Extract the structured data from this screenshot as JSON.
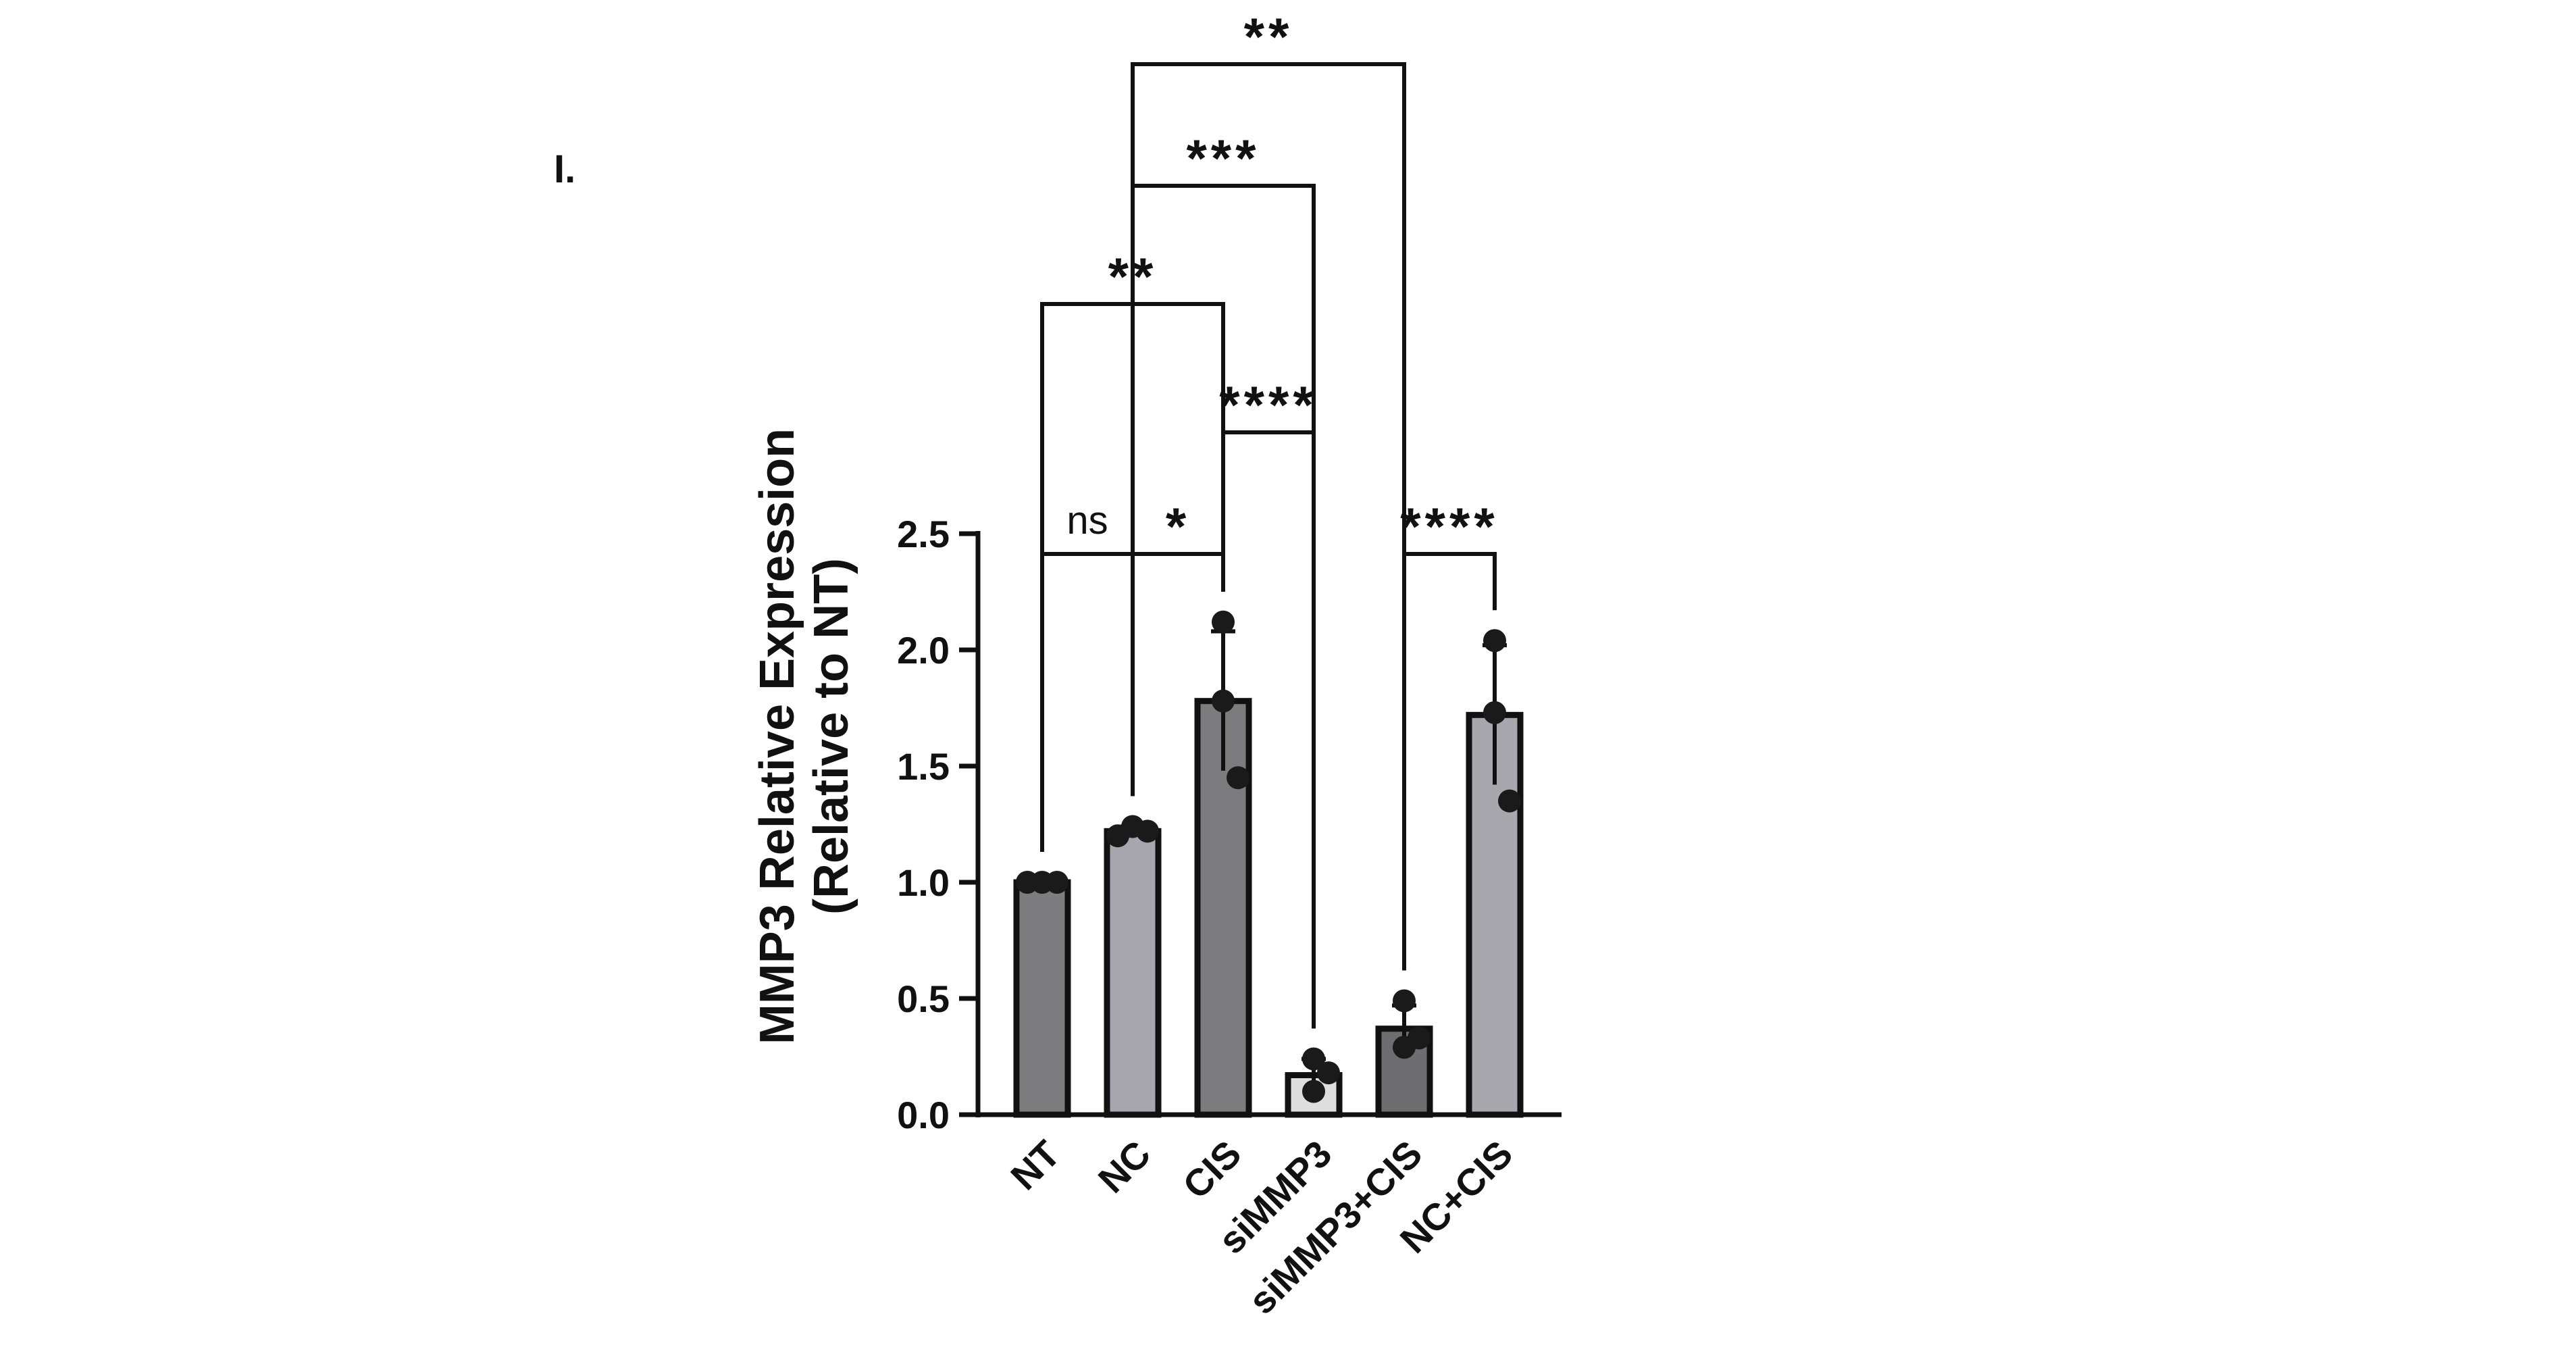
{
  "panel_label": "I.",
  "chart_data": {
    "type": "bar",
    "title": "",
    "xlabel": "",
    "ylabel_line1": "MMP3 Relative Expression",
    "ylabel_line2": "(Relative to NT)",
    "ylim": [
      0,
      2.5
    ],
    "yticks": [
      "0.0",
      "0.5",
      "1.0",
      "1.5",
      "2.0",
      "2.5"
    ],
    "grid": false,
    "legend": "none",
    "categories": [
      "NT",
      "NC",
      "CIS",
      "siMMP3",
      "siMMP3+CIS",
      "NC+CIS"
    ],
    "values": [
      1.0,
      1.22,
      1.78,
      0.17,
      0.37,
      1.72
    ],
    "error": [
      0.0,
      0.02,
      0.3,
      0.07,
      0.1,
      0.3
    ],
    "points": [
      [
        1.0,
        1.0,
        1.0
      ],
      [
        1.2,
        1.24,
        1.22
      ],
      [
        2.12,
        1.78,
        1.45
      ],
      [
        0.24,
        0.1,
        0.18
      ],
      [
        0.49,
        0.29,
        0.33
      ],
      [
        2.04,
        1.73,
        1.35
      ]
    ],
    "bar_colors": [
      "#7d7d80",
      "#a7a6ae",
      "#7c7c7e",
      "#dedede",
      "#6e6e70",
      "#a8a7ae"
    ],
    "point_color": "#1a1a1a",
    "significance": [
      {
        "from": 0,
        "to": 1,
        "label": "ns",
        "level": 0
      },
      {
        "from": 1,
        "to": 2,
        "label": "*",
        "level": 0
      },
      {
        "from": 4,
        "to": 5,
        "label": "****",
        "level": 0
      },
      {
        "from": 2,
        "to": 3,
        "label": "****",
        "level": 1
      },
      {
        "from": 0,
        "to": 2,
        "label": "**",
        "level": 2
      },
      {
        "from": 1,
        "to": 3,
        "label": "***",
        "level": 3
      },
      {
        "from": 1,
        "to": 4,
        "label": "**",
        "level": 4
      }
    ]
  }
}
